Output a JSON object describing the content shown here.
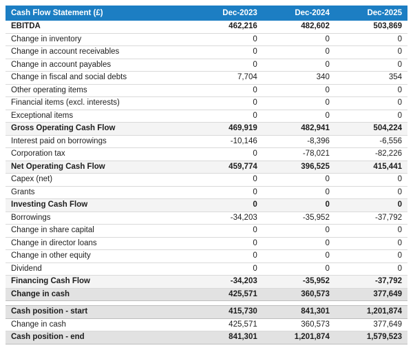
{
  "table": {
    "title": "Cash Flow Statement (£)",
    "columns": [
      "Dec-2023",
      "Dec-2024",
      "Dec-2025"
    ],
    "rows": [
      {
        "label": "EBITDA",
        "values": [
          "462,216",
          "482,602",
          "503,869"
        ],
        "style": "emphasis"
      },
      {
        "label": "Change in inventory",
        "values": [
          "0",
          "0",
          "0"
        ],
        "style": "normal"
      },
      {
        "label": "Change in account receivables",
        "values": [
          "0",
          "0",
          "0"
        ],
        "style": "normal"
      },
      {
        "label": "Change in account payables",
        "values": [
          "0",
          "0",
          "0"
        ],
        "style": "normal"
      },
      {
        "label": "Change in fiscal and social debts",
        "values": [
          "7,704",
          "340",
          "354"
        ],
        "style": "normal"
      },
      {
        "label": "Other operating items",
        "values": [
          "0",
          "0",
          "0"
        ],
        "style": "normal"
      },
      {
        "label": "Financial items (excl. interests)",
        "values": [
          "0",
          "0",
          "0"
        ],
        "style": "normal"
      },
      {
        "label": "Exceptional items",
        "values": [
          "0",
          "0",
          "0"
        ],
        "style": "normal"
      },
      {
        "label": "Gross Operating Cash Flow",
        "values": [
          "469,919",
          "482,941",
          "504,224"
        ],
        "style": "subtotal"
      },
      {
        "label": "Interest paid on borrowings",
        "values": [
          "-10,146",
          "-8,396",
          "-6,556"
        ],
        "style": "normal"
      },
      {
        "label": "Corporation tax",
        "values": [
          "0",
          "-78,021",
          "-82,226"
        ],
        "style": "normal"
      },
      {
        "label": "Net Operating Cash Flow",
        "values": [
          "459,774",
          "396,525",
          "415,441"
        ],
        "style": "subtotal"
      },
      {
        "label": "Capex (net)",
        "values": [
          "0",
          "0",
          "0"
        ],
        "style": "normal"
      },
      {
        "label": "Grants",
        "values": [
          "0",
          "0",
          "0"
        ],
        "style": "normal"
      },
      {
        "label": "Investing Cash Flow",
        "values": [
          "0",
          "0",
          "0"
        ],
        "style": "subtotal"
      },
      {
        "label": "Borrowings",
        "values": [
          "-34,203",
          "-35,952",
          "-37,792"
        ],
        "style": "normal"
      },
      {
        "label": "Change in share capital",
        "values": [
          "0",
          "0",
          "0"
        ],
        "style": "normal"
      },
      {
        "label": "Change in director loans",
        "values": [
          "0",
          "0",
          "0"
        ],
        "style": "normal"
      },
      {
        "label": "Change in other equity",
        "values": [
          "0",
          "0",
          "0"
        ],
        "style": "normal"
      },
      {
        "label": "Dividend",
        "values": [
          "0",
          "0",
          "0"
        ],
        "style": "normal"
      },
      {
        "label": "Financing Cash Flow",
        "values": [
          "-34,203",
          "-35,952",
          "-37,792"
        ],
        "style": "subtotal"
      },
      {
        "label": "Change in cash",
        "values": [
          "425,571",
          "360,573",
          "377,649"
        ],
        "style": "total"
      },
      {
        "label": "",
        "values": [
          "",
          "",
          ""
        ],
        "style": "spacer"
      },
      {
        "label": "Cash position - start",
        "values": [
          "415,730",
          "841,301",
          "1,201,874"
        ],
        "style": "total"
      },
      {
        "label": "Change in cash",
        "values": [
          "425,571",
          "360,573",
          "377,649"
        ],
        "style": "normal"
      },
      {
        "label": "Cash position - end",
        "values": [
          "841,301",
          "1,201,874",
          "1,579,523"
        ],
        "style": "total"
      }
    ],
    "colors": {
      "header_bg": "#1c7ec3",
      "header_text": "#ffffff",
      "subtotal_bg": "#f4f4f4",
      "total_bg": "#e2e2e2",
      "row_border": "#d9d9d9",
      "text": "#1d1d1d"
    }
  }
}
